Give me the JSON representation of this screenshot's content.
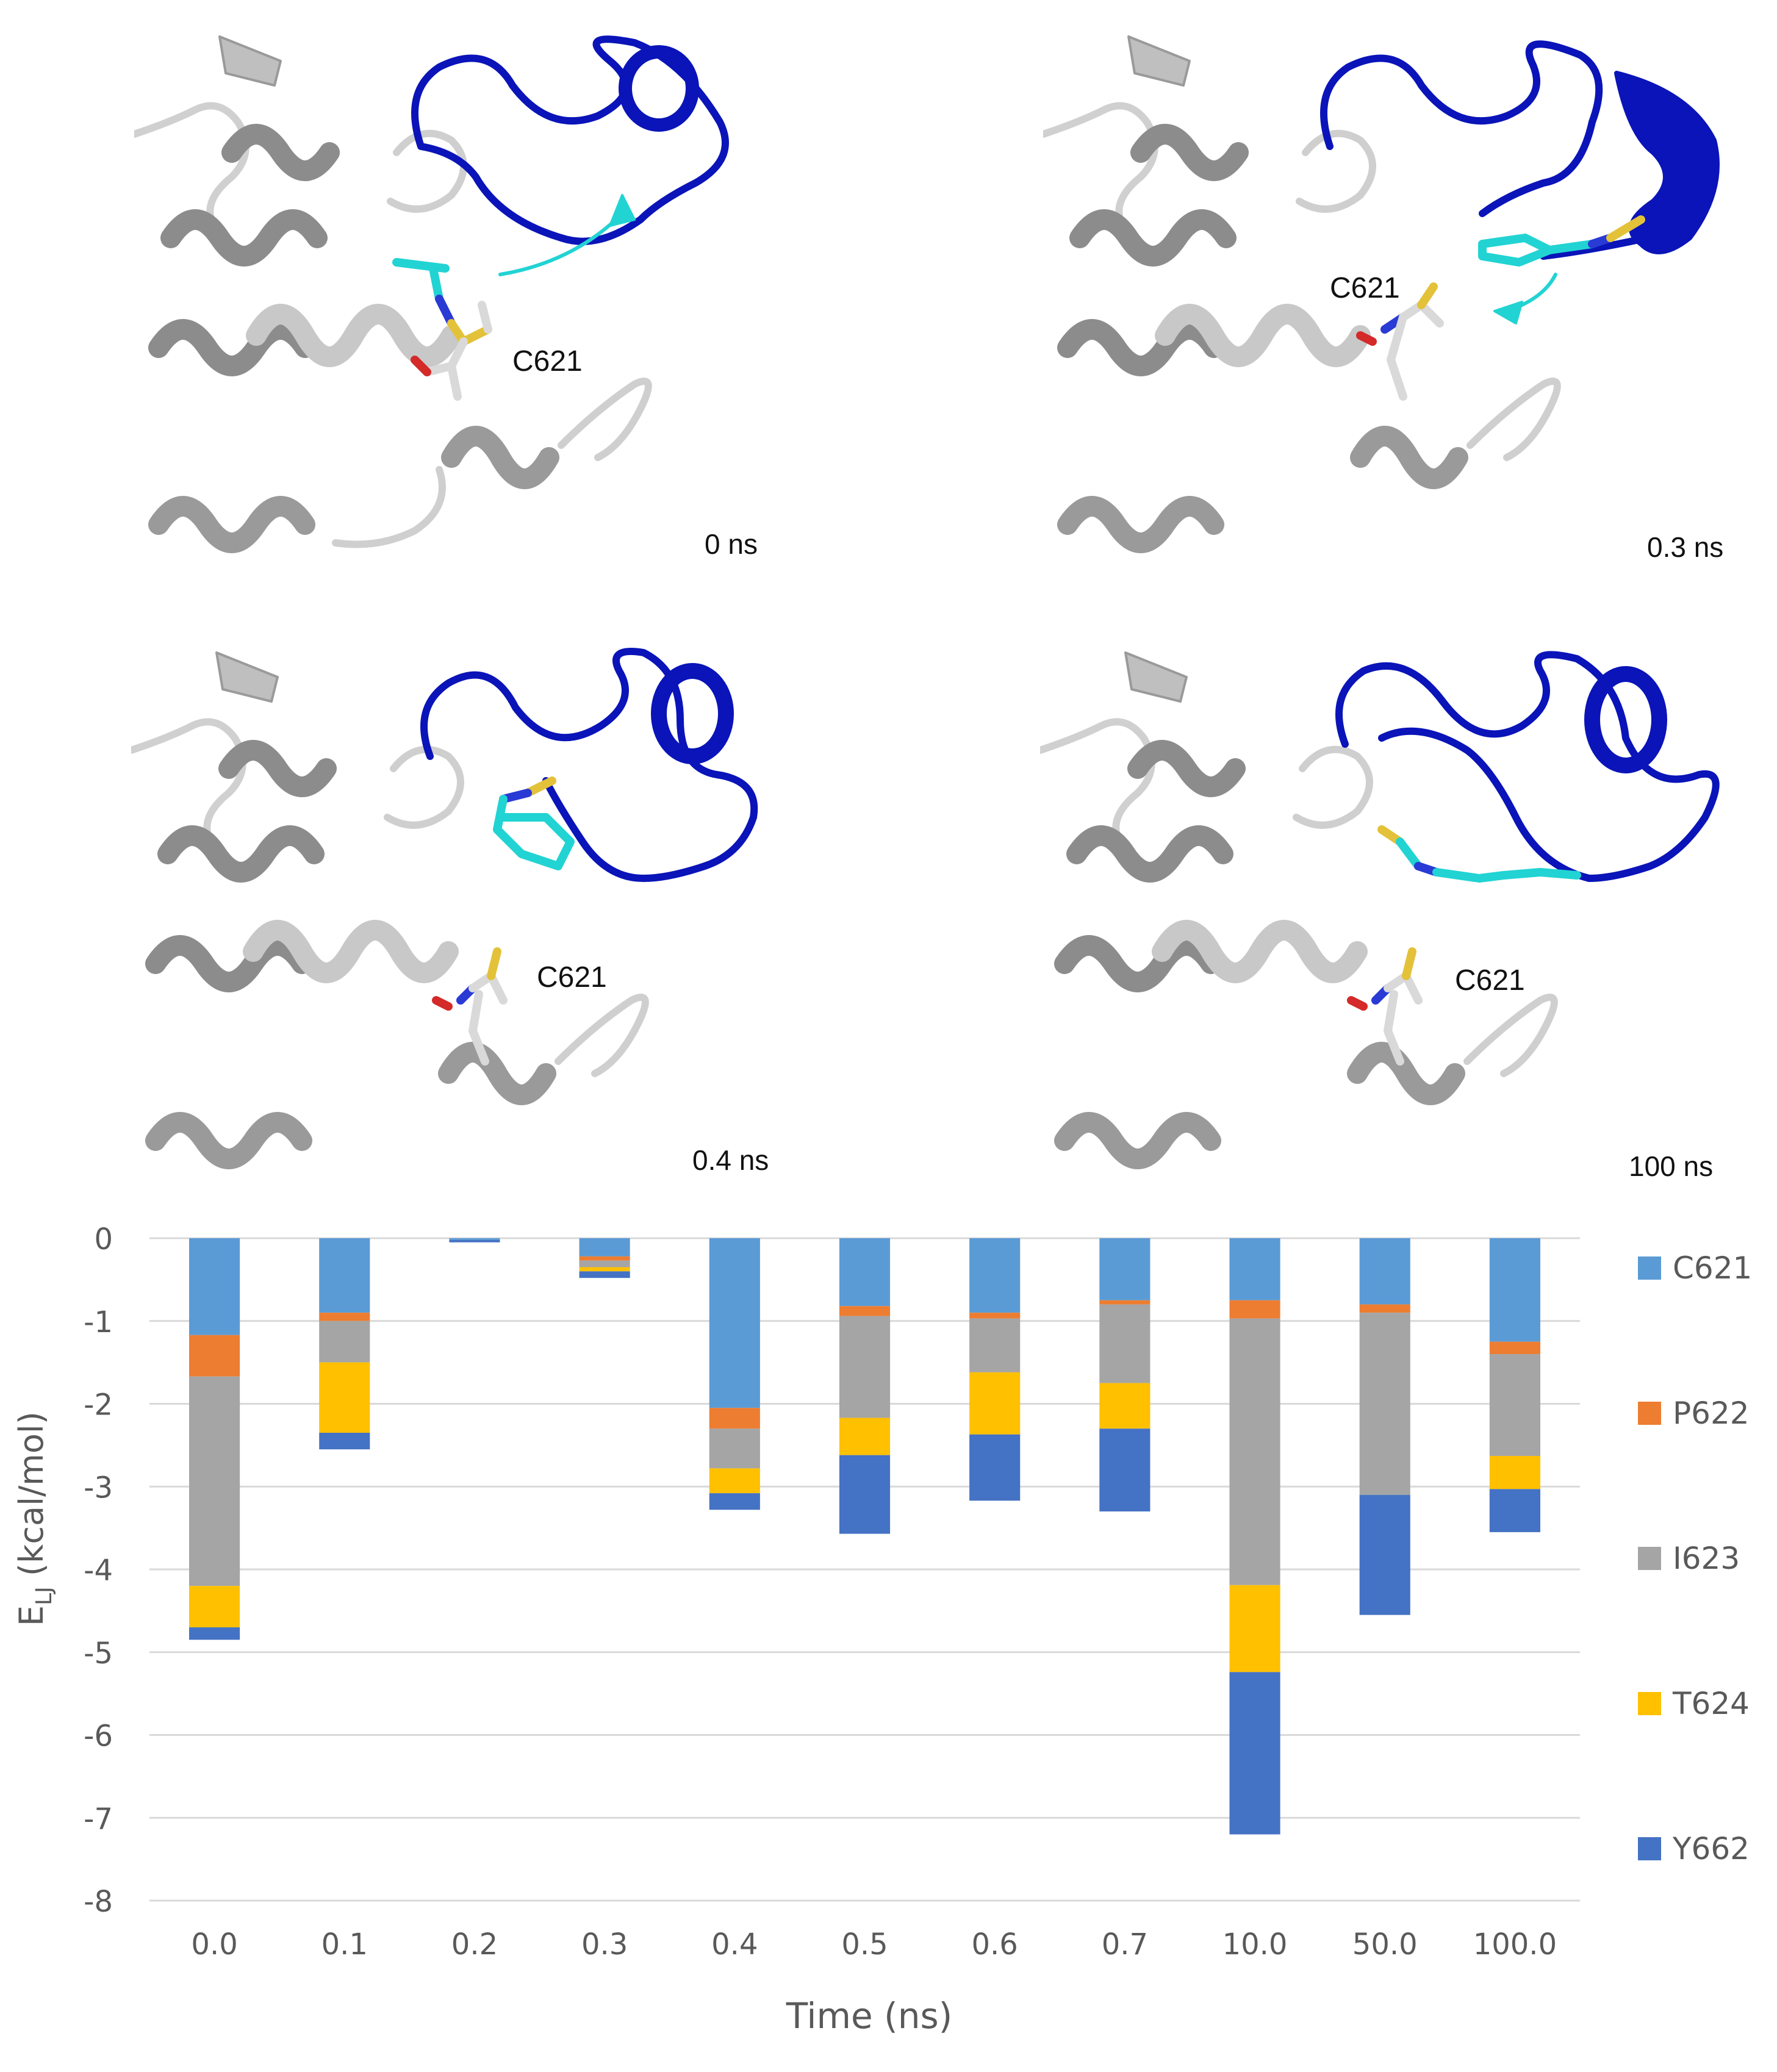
{
  "panels": [
    {
      "time_label": "0 ns",
      "residue_label": "C621"
    },
    {
      "time_label": "0.3 ns",
      "residue_label": "C621"
    },
    {
      "time_label": "0.4 ns",
      "residue_label": "C621"
    },
    {
      "time_label": "100 ns",
      "residue_label": "C621"
    }
  ],
  "colors": {
    "protein_gray": "#a6a6a6",
    "protein_dark": "#7a7a7a",
    "loop_blue": "#0a14b8",
    "ligand_cyan": "#22d3d3",
    "sulfur": "#e3c23a",
    "oxygen": "#d42a2a",
    "nitrogen": "#2a3ad4"
  },
  "chart_data": {
    "type": "bar",
    "stacked": true,
    "categories": [
      "0.0",
      "0.1",
      "0.2",
      "0.3",
      "0.4",
      "0.5",
      "0.6",
      "0.7",
      "10.0",
      "50.0",
      "100.0"
    ],
    "series": [
      {
        "name": "C621",
        "color": "#5b9bd5",
        "values": [
          -1.17,
          -0.9,
          -0.02,
          -0.22,
          -2.05,
          -0.82,
          -0.9,
          -0.75,
          -0.75,
          -0.8,
          -1.25
        ]
      },
      {
        "name": "P622",
        "color": "#ed7d31",
        "values": [
          -0.5,
          -0.1,
          0,
          -0.05,
          -0.25,
          -0.12,
          -0.07,
          -0.05,
          -0.22,
          -0.1,
          -0.15
        ]
      },
      {
        "name": "I623",
        "color": "#a5a5a5",
        "values": [
          -2.53,
          -0.5,
          0,
          -0.08,
          -0.48,
          -1.23,
          -0.65,
          -0.95,
          -3.22,
          -2.2,
          -1.23
        ]
      },
      {
        "name": "T624",
        "color": "#ffc000",
        "values": [
          -0.5,
          -0.85,
          0,
          -0.05,
          -0.3,
          -0.45,
          -0.75,
          -0.55,
          -1.05,
          0,
          -0.4
        ]
      },
      {
        "name": "Y662",
        "color": "#4472c4",
        "values": [
          -0.15,
          -0.2,
          -0.03,
          -0.08,
          -0.2,
          -0.95,
          -0.8,
          -1.0,
          -1.96,
          -1.45,
          -0.52
        ]
      }
    ],
    "title": "",
    "xlabel": "Time (ns)",
    "ylabel_main": "E",
    "ylabel_sub": "LJ",
    "ylabel_unit": " (kcal/mol)",
    "ylim": [
      -8,
      0
    ],
    "yticks": [
      0,
      -1,
      -2,
      -3,
      -4,
      -5,
      -6,
      -7,
      -8
    ],
    "grid": true,
    "legend_position": "right"
  }
}
